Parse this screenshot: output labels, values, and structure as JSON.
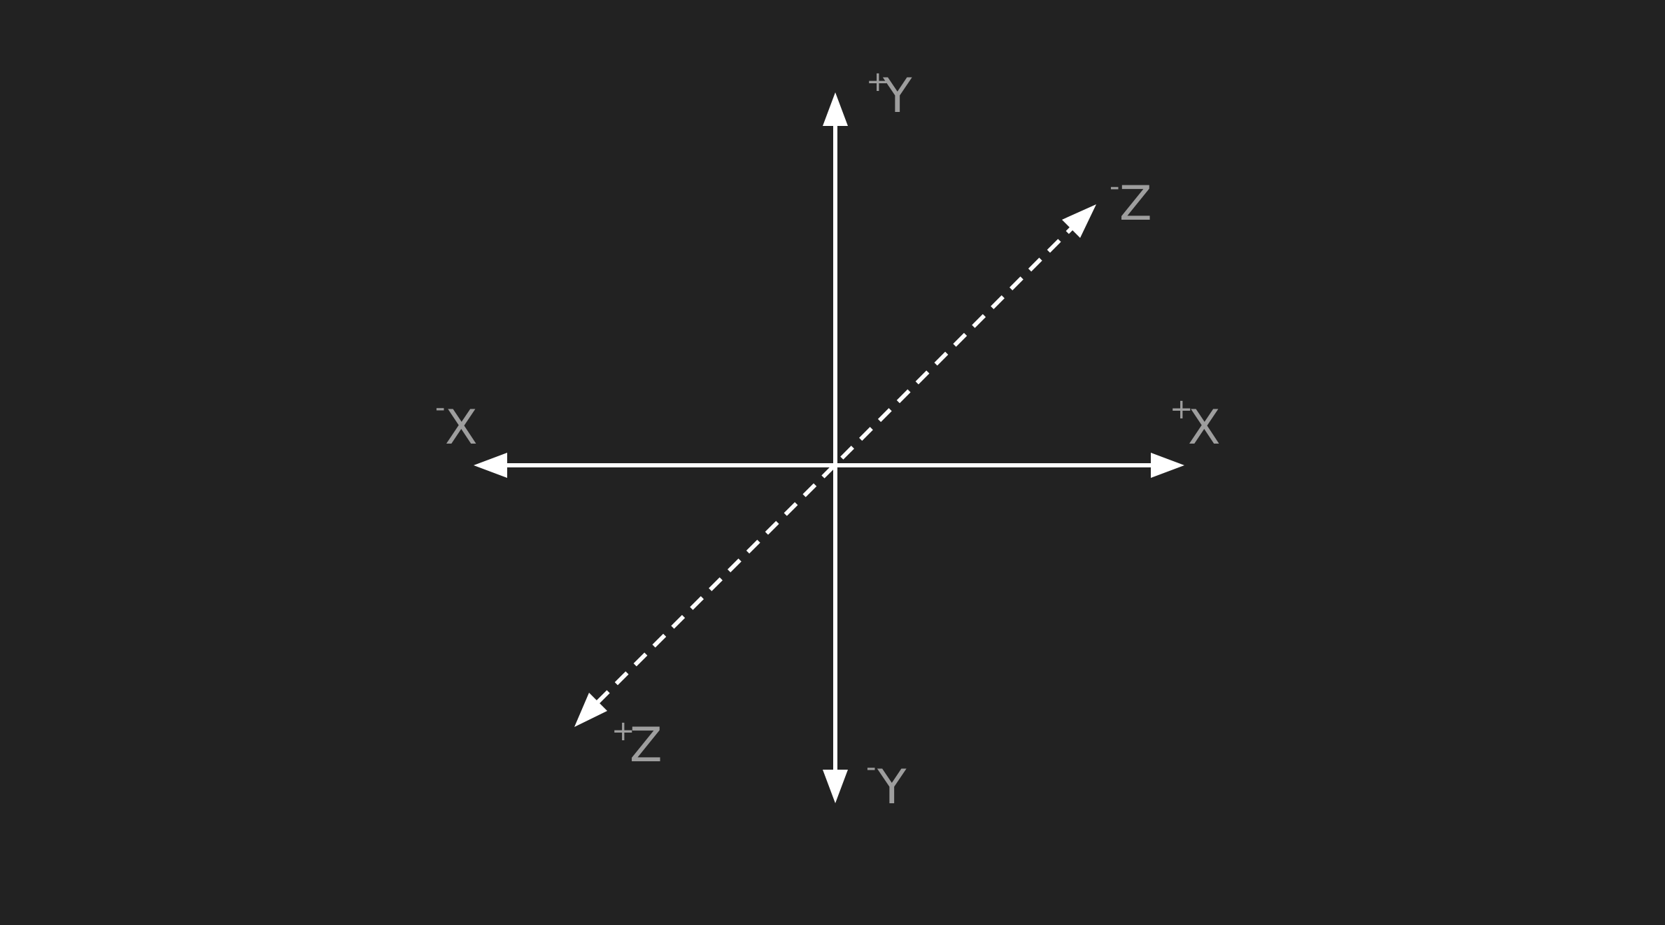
{
  "colors": {
    "background": "#222222",
    "axis": "#ffffff",
    "label": "#9e9e9e"
  },
  "axes": {
    "x": {
      "positive": {
        "sign": "+",
        "letter": "X"
      },
      "negative": {
        "sign": "-",
        "letter": "X"
      },
      "style": "solid"
    },
    "y": {
      "positive": {
        "sign": "+",
        "letter": "Y"
      },
      "negative": {
        "sign": "-",
        "letter": "Y"
      },
      "style": "solid"
    },
    "z": {
      "positive": {
        "sign": "+",
        "letter": "Z"
      },
      "negative": {
        "sign": "-",
        "letter": "Z"
      },
      "style": "dashed"
    }
  }
}
